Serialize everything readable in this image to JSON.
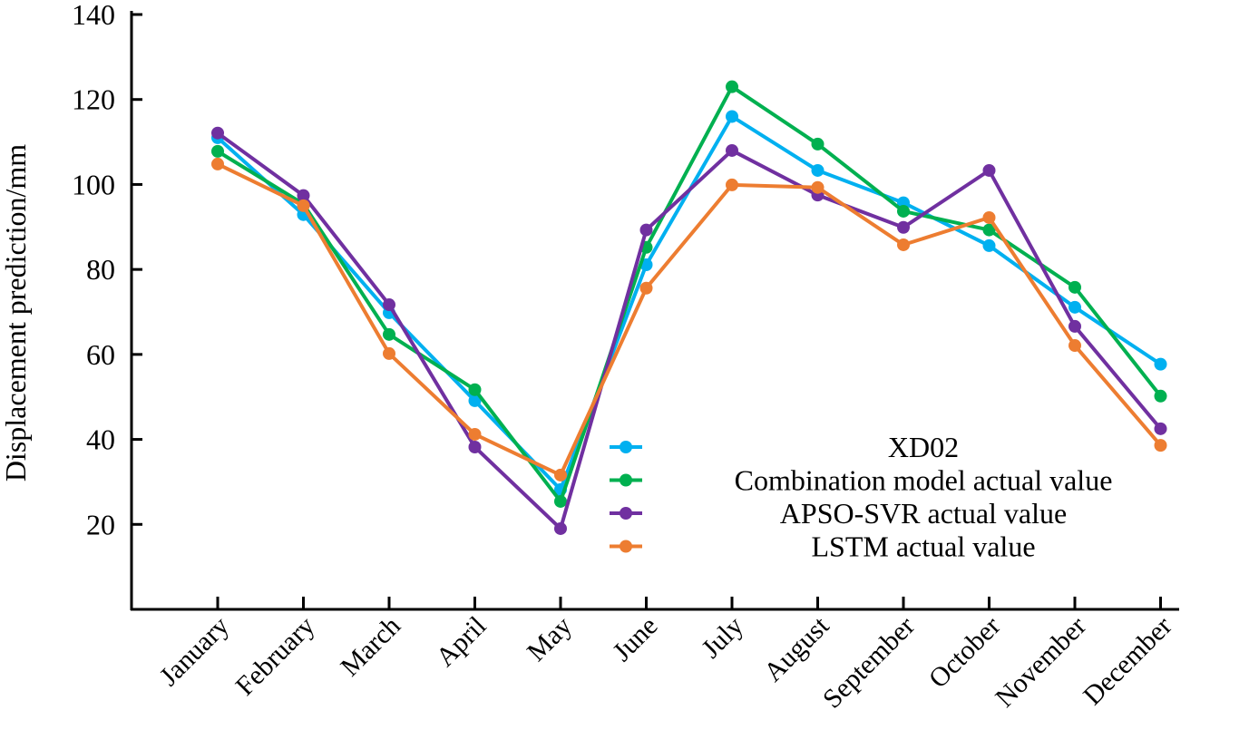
{
  "chart_data": {
    "type": "line",
    "title": "",
    "xlabel": "",
    "ylabel": "Displacement prediction/mm",
    "ylim": [
      0,
      140
    ],
    "yticks": [
      20,
      40,
      60,
      80,
      100,
      120,
      140
    ],
    "categories": [
      "January",
      "February",
      "March",
      "April",
      "May",
      "June",
      "July",
      "August",
      "September",
      "October",
      "November",
      "December"
    ],
    "legend_position": "bottom-center",
    "series": [
      {
        "name": "XD02",
        "color": "#00b0f0",
        "values": [
          111,
          92.9,
          69.8,
          49.1,
          28.2,
          81.1,
          116,
          103.3,
          95.7,
          85.6,
          71.1,
          57.7
        ]
      },
      {
        "name": "Combination model actual value",
        "color": "#00b050",
        "values": [
          107.8,
          95.4,
          64.7,
          51.7,
          25.4,
          85.2,
          123,
          109.5,
          93.7,
          89.3,
          75.8,
          50.2
        ]
      },
      {
        "name": "APSO-SVR actual value",
        "color": "#7030a0",
        "values": [
          112.1,
          97.4,
          71.7,
          38.2,
          19,
          89.3,
          108,
          97.5,
          89.9,
          103.3,
          66.6,
          42.5
        ]
      },
      {
        "name": "LSTM actual value",
        "color": "#ed7d31",
        "values": [
          104.8,
          95,
          60.2,
          41.2,
          31.6,
          75.6,
          99.9,
          99.3,
          85.8,
          92.2,
          62.1,
          38.6
        ]
      }
    ]
  }
}
